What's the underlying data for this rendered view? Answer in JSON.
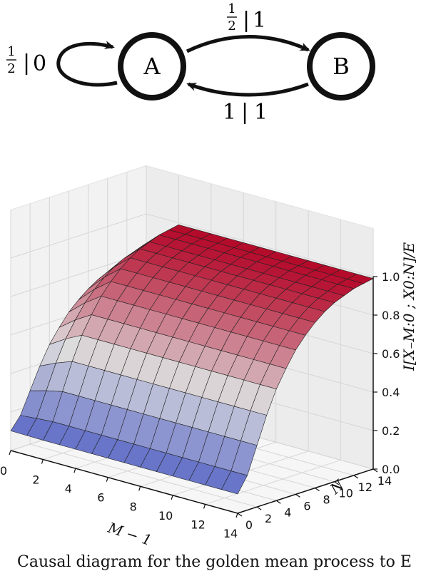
{
  "state_diagram": {
    "states": [
      "A",
      "B"
    ],
    "edges": [
      {
        "from": "A",
        "to": "A",
        "prob": "½",
        "output": "0"
      },
      {
        "from": "A",
        "to": "B",
        "prob": "½",
        "output": "1"
      },
      {
        "from": "B",
        "to": "A",
        "prob": "1",
        "output": "1"
      }
    ]
  },
  "plot": {
    "x_axis": {
      "label": "M − 1",
      "ticks": [
        "0",
        "2",
        "4",
        "6",
        "8",
        "10",
        "12",
        "14"
      ]
    },
    "y_axis": {
      "label": "N",
      "ticks": [
        "0",
        "2",
        "4",
        "6",
        "8",
        "10",
        "12",
        "14"
      ]
    },
    "z_axis": {
      "label": "I[X₋M:0 ; X0:N]/E",
      "ticks": [
        "0.0",
        "0.2",
        "0.4",
        "0.6",
        "0.8",
        "1.0"
      ]
    },
    "colormap": [
      "#3b4cc0",
      "#dddddd",
      "#b40426"
    ]
  },
  "chart_data": {
    "type": "surface",
    "xlabel": "M − 1",
    "ylabel": "N",
    "zlabel": "I[X₋M:0 ; X0:N]/E",
    "xlim": [
      0,
      14
    ],
    "ylim": [
      0,
      14
    ],
    "zlim": [
      0.0,
      1.0
    ],
    "grid": true,
    "x": [
      0,
      1,
      2,
      3,
      4,
      5,
      6,
      7,
      8,
      9,
      10,
      11,
      12,
      13,
      14
    ],
    "y": [
      0,
      1,
      2,
      3,
      4,
      5,
      6,
      7,
      8,
      9,
      10,
      11,
      12,
      13,
      14
    ],
    "z_description": "z(x, n) ≈ 1 − 2^(−min(x,3)/2) · 2^(−n/2) shape; rises with N toward 1.0",
    "z_row_profile": [
      0.1,
      0.18,
      0.32,
      0.46,
      0.58,
      0.67,
      0.75,
      0.81,
      0.86,
      0.9,
      0.93,
      0.95,
      0.97,
      0.98,
      0.99
    ],
    "z_col_scale": [
      0.55,
      0.8,
      1.0,
      1.0,
      1.0,
      1.0,
      1.0,
      1.0,
      1.0,
      1.0,
      1.0,
      1.0,
      1.0,
      1.0,
      1.0
    ]
  },
  "caption": "Causal diagram for the golden mean process to E"
}
